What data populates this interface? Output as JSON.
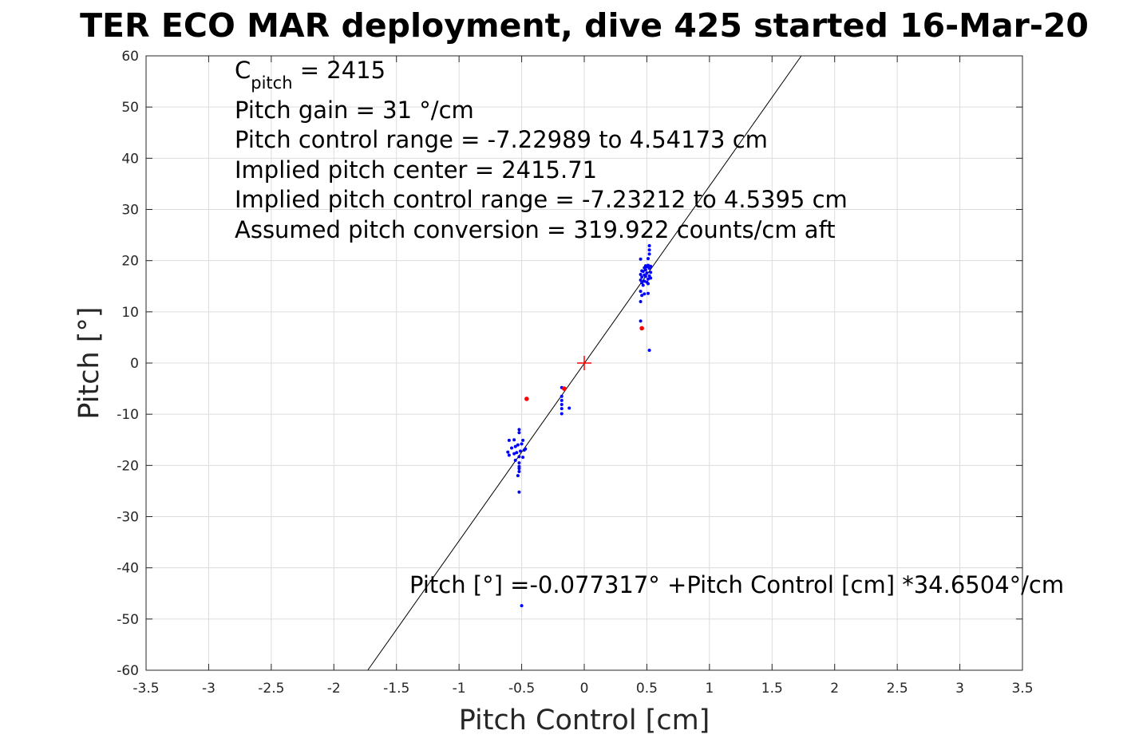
{
  "chart_data": {
    "type": "scatter",
    "title": "TER ECO MAR deployment, dive 425 started 16-Mar-20",
    "xlabel": "Pitch Control [cm]",
    "ylabel": "Pitch [°]",
    "xlim": [
      -3.5,
      3.5
    ],
    "ylim": [
      -60,
      60
    ],
    "x_ticks": [
      -3.5,
      -3,
      -2.5,
      -2,
      -1.5,
      -1,
      -0.5,
      0,
      0.5,
      1,
      1.5,
      2,
      2.5,
      3,
      3.5
    ],
    "y_ticks": [
      -60,
      -50,
      -40,
      -30,
      -20,
      -10,
      0,
      10,
      20,
      30,
      40,
      50,
      60
    ],
    "grid": true,
    "colors": {
      "blue_points": "#0000ff",
      "red_points": "#ff0000",
      "fit_line": "#000000",
      "center_marker": "#ff0000"
    },
    "annotations": {
      "c_pitch_base": "C",
      "c_pitch_sub": "pitch",
      "c_pitch_value": " = 2415",
      "lines": [
        "Pitch gain = 31 °/cm",
        "Pitch control range = -7.22989 to 4.54173 cm",
        "Implied pitch center = 2415.71",
        "Implied pitch control range = -7.23212 to 4.5395 cm",
        "Assumed pitch conversion = 319.922 counts/cm aft"
      ],
      "fit_equation": "Pitch [°] =-0.077317° +Pitch Control [cm] *34.6504°/cm"
    },
    "fit": {
      "intercept": -0.077317,
      "slope": 34.6504
    },
    "center_marker": [
      0,
      0
    ],
    "series": [
      {
        "color": "blue",
        "points": [
          [
            0.45,
            20.3
          ],
          [
            0.46,
            18.0
          ],
          [
            0.45,
            17.3
          ],
          [
            0.46,
            16.8
          ],
          [
            0.45,
            16.2
          ],
          [
            0.46,
            15.7
          ],
          [
            0.47,
            17.9
          ],
          [
            0.48,
            18.6
          ],
          [
            0.49,
            19.0
          ],
          [
            0.5,
            18.8
          ],
          [
            0.51,
            19.1
          ],
          [
            0.52,
            18.5
          ],
          [
            0.48,
            17.2
          ],
          [
            0.49,
            16.9
          ],
          [
            0.5,
            17.6
          ],
          [
            0.51,
            16.4
          ],
          [
            0.52,
            17.0
          ],
          [
            0.5,
            15.8
          ],
          [
            0.48,
            16.0
          ],
          [
            0.47,
            15.2
          ],
          [
            0.51,
            15.5
          ],
          [
            0.52,
            22.9
          ],
          [
            0.52,
            22.1
          ],
          [
            0.52,
            21.3
          ],
          [
            0.51,
            20.4
          ],
          [
            0.49,
            18.2
          ],
          [
            0.53,
            18.9
          ],
          [
            0.53,
            17.7
          ],
          [
            0.53,
            16.6
          ],
          [
            0.45,
            14.0
          ],
          [
            0.46,
            13.2
          ],
          [
            0.51,
            13.6
          ],
          [
            0.48,
            13.5
          ],
          [
            0.45,
            12.0
          ],
          [
            0.45,
            8.2
          ],
          [
            0.52,
            2.5
          ],
          [
            -0.18,
            -4.8
          ],
          [
            -0.18,
            -6.5
          ],
          [
            -0.18,
            -7.3
          ],
          [
            -0.18,
            -8.1
          ],
          [
            -0.18,
            -8.9
          ],
          [
            -0.18,
            -9.9
          ],
          [
            -0.12,
            -8.8
          ],
          [
            -0.52,
            -13.0
          ],
          [
            -0.52,
            -13.6
          ],
          [
            -0.56,
            -15.0
          ],
          [
            -0.6,
            -15.1
          ],
          [
            -0.49,
            -15.1
          ],
          [
            -0.5,
            -15.8
          ],
          [
            -0.53,
            -16.0
          ],
          [
            -0.55,
            -16.3
          ],
          [
            -0.58,
            -16.6
          ],
          [
            -0.47,
            -16.8
          ],
          [
            -0.48,
            -17.0
          ],
          [
            -0.51,
            -17.2
          ],
          [
            -0.54,
            -17.5
          ],
          [
            -0.61,
            -17.4
          ],
          [
            -0.56,
            -17.7
          ],
          [
            -0.6,
            -18.0
          ],
          [
            -0.52,
            -18.3
          ],
          [
            -0.49,
            -18.4
          ],
          [
            -0.55,
            -19.0
          ],
          [
            -0.52,
            -19.5
          ],
          [
            -0.52,
            -20.2
          ],
          [
            -0.52,
            -20.6
          ],
          [
            -0.52,
            -21.2
          ],
          [
            -0.53,
            -22.0
          ],
          [
            -0.52,
            -25.2
          ],
          [
            -0.5,
            -47.4
          ]
        ]
      },
      {
        "color": "red",
        "points": [
          [
            0.46,
            6.8
          ],
          [
            -0.46,
            -7.0
          ],
          [
            -0.16,
            -5.0
          ]
        ]
      }
    ]
  }
}
